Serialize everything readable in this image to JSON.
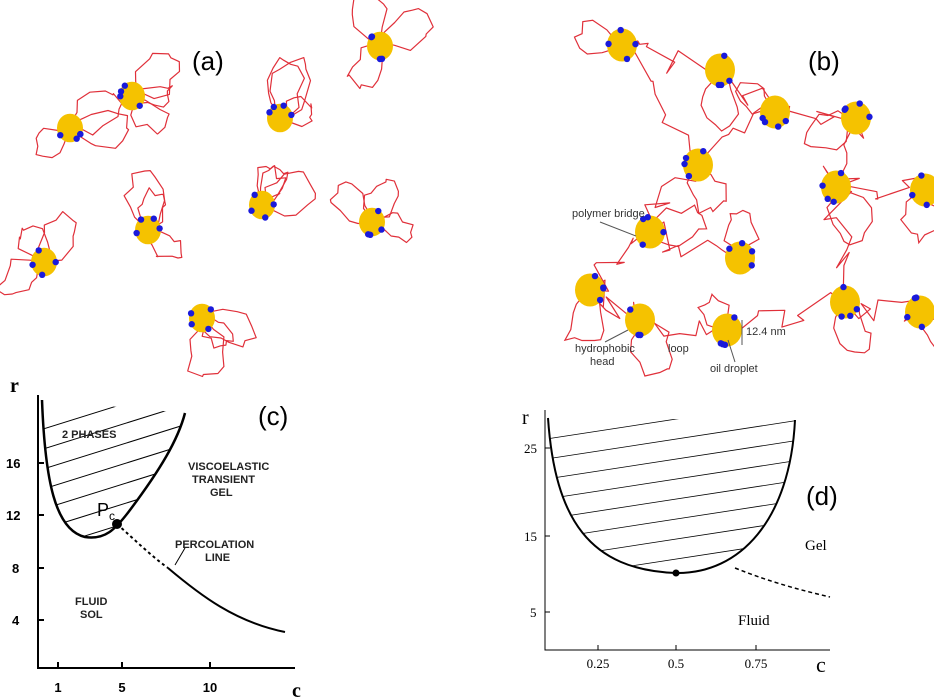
{
  "panels": {
    "a": {
      "label": "(a)"
    },
    "b": {
      "label": "(b)",
      "annotations": {
        "polymer_bridge": "polymer bridge",
        "hydrophobic_head": [
          "hydrophobic",
          "head"
        ],
        "loop": "loop",
        "oil_droplet": "oil droplet",
        "size": "12.4 nm"
      }
    },
    "c": {
      "label": "(c)",
      "y_axis_label": "r",
      "x_axis_label": "c",
      "yticks": [
        "16",
        "12",
        "8",
        "4"
      ],
      "xticks": [
        "1",
        "5",
        "10"
      ],
      "annotations": {
        "two_phases": "2 PHASES",
        "gel": [
          "VISCOELASTIC",
          "TRANSIENT",
          "GEL"
        ],
        "critical_point": "P",
        "critical_point_sub": "c",
        "percolation": [
          "PERCOLATION",
          "LINE"
        ],
        "sol": [
          "FLUID",
          "SOL"
        ]
      }
    },
    "d": {
      "label": "(d)",
      "y_axis_label": "r",
      "x_axis_label": "c",
      "yticks": [
        "25",
        "15",
        "5"
      ],
      "xticks": [
        "0.25",
        "0.5",
        "0.75"
      ],
      "annotations": {
        "gel": "Gel",
        "fluid": "Fluid"
      }
    }
  }
}
